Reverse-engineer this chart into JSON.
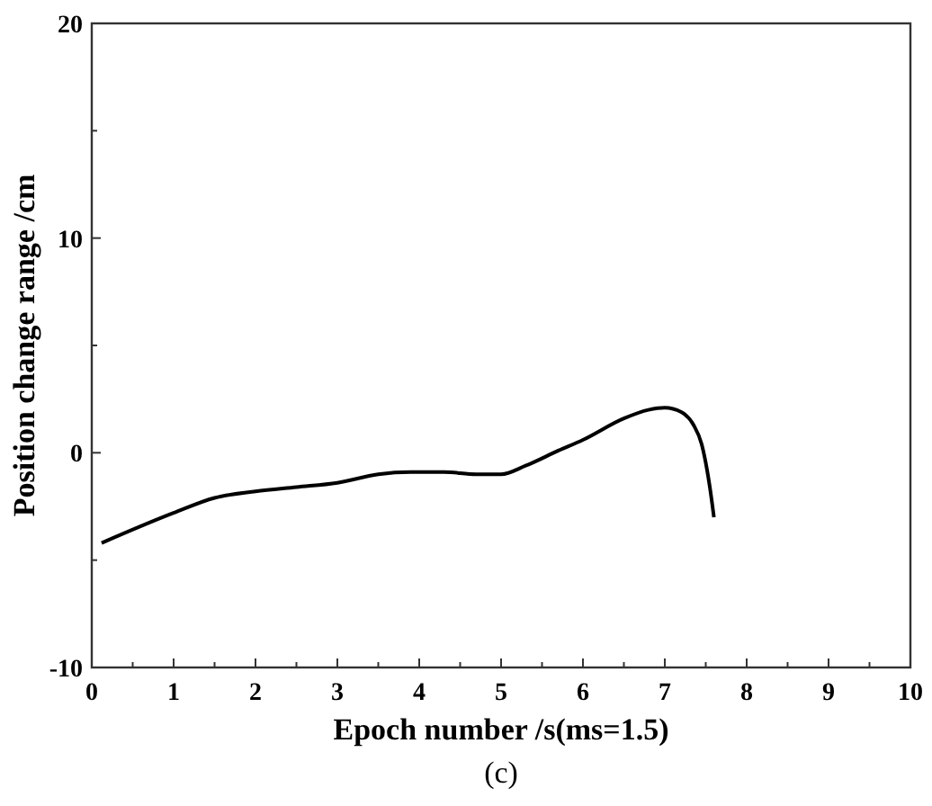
{
  "chart_data": {
    "type": "line",
    "xlabel": "Epoch number /s(ms=1.5)",
    "ylabel": "Position change range /cm",
    "annotations": [
      "(c)"
    ],
    "xlim": [
      0,
      10
    ],
    "ylim": [
      -10,
      20
    ],
    "xticks": [
      0,
      {
        "value": 0.5,
        "label": null
      },
      1,
      {
        "value": 1.5,
        "label": null
      },
      2,
      {
        "value": 2.5,
        "label": null
      },
      3,
      {
        "value": 3.5,
        "label": null
      },
      4,
      {
        "value": 4.5,
        "label": null
      },
      5,
      {
        "value": 5.5,
        "label": null
      },
      6,
      {
        "value": 6.5,
        "label": null
      },
      7,
      {
        "value": 7.5,
        "label": null
      },
      8,
      {
        "value": 8.5,
        "label": null
      },
      9,
      {
        "value": 9.5,
        "label": null
      },
      10
    ],
    "yticks": [
      -10,
      {
        "value": -5,
        "label": null
      },
      0,
      {
        "value": 5,
        "label": null
      },
      10,
      {
        "value": 15,
        "label": null
      },
      20
    ],
    "grid": false,
    "marker": "none",
    "line_style": "solid",
    "series": [
      {
        "color": "#000000",
        "x": [
          0.12,
          1,
          1.5,
          2,
          2.5,
          3,
          3.5,
          3.9,
          4.3,
          4.7,
          5,
          5.3,
          5.7,
          6,
          6.5,
          6.8,
          7,
          7.2,
          7.35,
          7.45,
          7.55,
          7.6
        ],
        "values": [
          -4.2,
          -2.8,
          -2.1,
          -1.8,
          -1.6,
          -1.4,
          -1,
          -0.9,
          -0.9,
          -1,
          -1,
          -0.6,
          0.1,
          0.6,
          1.6,
          2,
          2.1,
          1.9,
          1.3,
          0.4,
          -1.6,
          -3
        ]
      }
    ]
  }
}
